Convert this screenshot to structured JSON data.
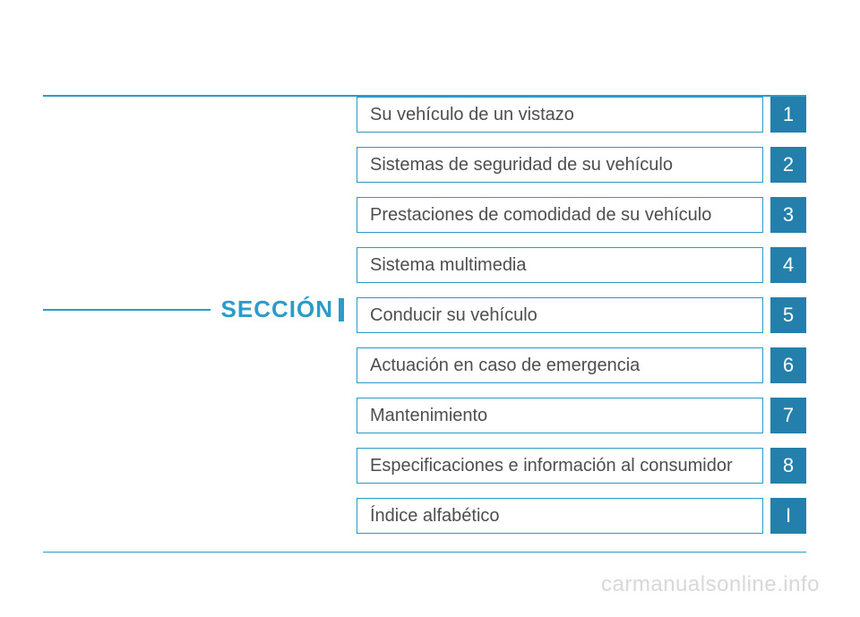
{
  "section_label": "SECCIÓN",
  "toc": [
    {
      "label": "Su vehículo de un vistazo",
      "num": "1"
    },
    {
      "label": "Sistemas de seguridad de su vehículo",
      "num": "2"
    },
    {
      "label": "Prestaciones de comodidad de su vehículo",
      "num": "3"
    },
    {
      "label": "Sistema multimedia",
      "num": "4"
    },
    {
      "label": "Conducir su vehículo",
      "num": "5"
    },
    {
      "label": "Actuación en caso de emergencia",
      "num": "6"
    },
    {
      "label": "Mantenimiento",
      "num": "7"
    },
    {
      "label": "Especificaciones e información al consumidor",
      "num": "8"
    },
    {
      "label": "Índice alfabético",
      "num": "I"
    }
  ],
  "watermark": "carmanualsonline.info",
  "colors": {
    "accent": "#2b9bc8",
    "tab_bg": "#2480aa",
    "text": "#4e4e4e",
    "watermark": "#d8d8d8"
  }
}
